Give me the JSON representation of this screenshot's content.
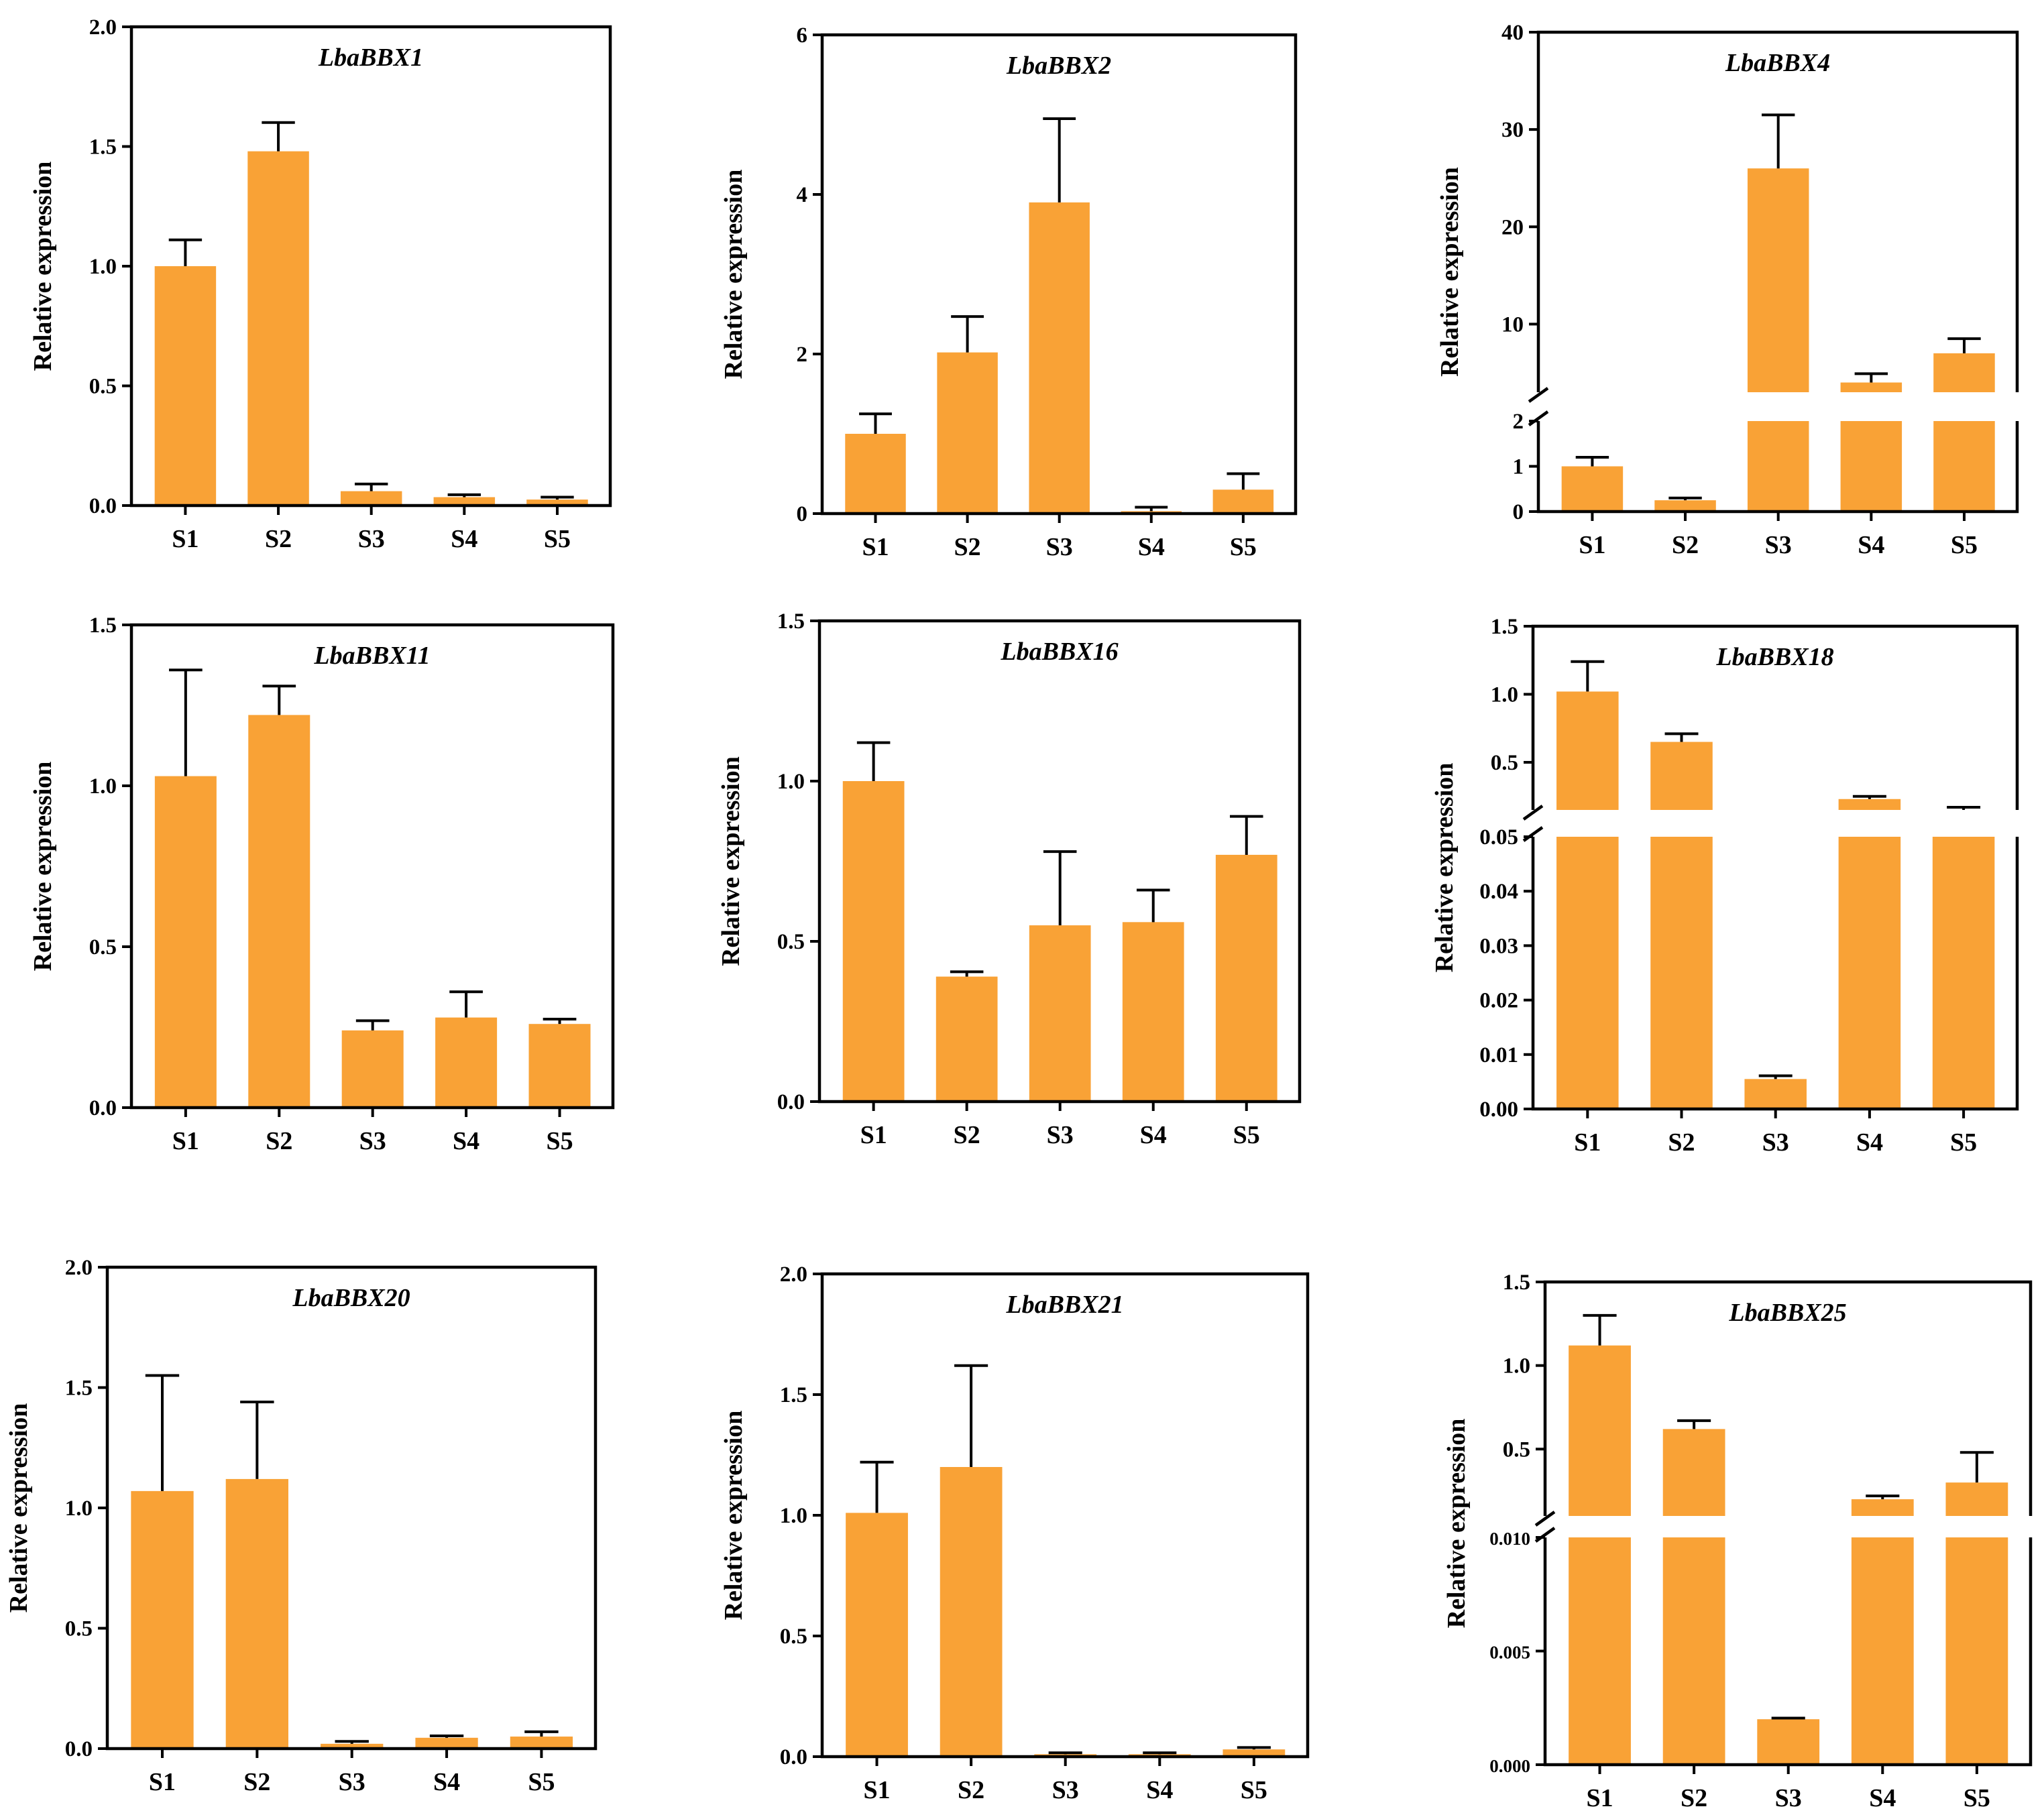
{
  "colors": {
    "bar": "#F9A236",
    "axis": "#000000"
  },
  "chart_data": [
    {
      "type": "bar",
      "title": "LbaBBX1",
      "ylabel": "Relative expression",
      "categories": [
        "S1",
        "S2",
        "S3",
        "S4",
        "S5"
      ],
      "values": [
        1.0,
        1.48,
        0.06,
        0.035,
        0.025
      ],
      "errors": [
        0.11,
        0.12,
        0.03,
        0.01,
        0.01
      ],
      "ylim": [
        0,
        2.0
      ],
      "yticks": [
        0,
        0.5,
        1.0,
        1.5,
        2.0
      ],
      "ytick_labels": [
        "0.0",
        "0.5",
        "1.0",
        "1.5",
        "2.0"
      ]
    },
    {
      "type": "bar",
      "title": "LbaBBX2",
      "ylabel": "Relative expression",
      "categories": [
        "S1",
        "S2",
        "S3",
        "S4",
        "S5"
      ],
      "values": [
        1.0,
        2.02,
        3.9,
        0.03,
        0.3
      ],
      "errors": [
        0.25,
        0.45,
        1.05,
        0.05,
        0.2
      ],
      "ylim": [
        0,
        6
      ],
      "yticks": [
        0,
        2,
        4,
        6
      ],
      "ytick_labels": [
        "0",
        "2",
        "4",
        "6"
      ]
    },
    {
      "type": "bar",
      "title": "LbaBBX4",
      "ylabel": "Relative expression",
      "categories": [
        "S1",
        "S2",
        "S3",
        "S4",
        "S5"
      ],
      "values": [
        1.0,
        0.25,
        26,
        4,
        7
      ],
      "errors": [
        0.2,
        0.05,
        5.5,
        0.9,
        1.5
      ],
      "axis_break": {
        "lower": [
          0,
          2
        ],
        "upper": [
          3,
          40
        ]
      },
      "yticks_lower": [
        0,
        1,
        2
      ],
      "ytick_labels_lower": [
        "0",
        "1",
        "2"
      ],
      "yticks_upper": [
        10,
        20,
        30,
        40
      ],
      "ytick_labels_upper": [
        "10",
        "20",
        "30",
        "40"
      ]
    },
    {
      "type": "bar",
      "title": "LbaBBX11",
      "ylabel": "Relative expression",
      "categories": [
        "S1",
        "S2",
        "S3",
        "S4",
        "S5"
      ],
      "values": [
        1.03,
        1.22,
        0.24,
        0.28,
        0.26
      ],
      "errors": [
        0.33,
        0.09,
        0.03,
        0.08,
        0.015
      ],
      "ylim": [
        0,
        1.5
      ],
      "yticks": [
        0,
        0.5,
        1.0,
        1.5
      ],
      "ytick_labels": [
        "0.0",
        "0.5",
        "1.0",
        "1.5"
      ]
    },
    {
      "type": "bar",
      "title": "LbaBBX16",
      "ylabel": "Relative expression",
      "categories": [
        "S1",
        "S2",
        "S3",
        "S4",
        "S5"
      ],
      "values": [
        1.0,
        0.39,
        0.55,
        0.56,
        0.77
      ],
      "errors": [
        0.12,
        0.015,
        0.23,
        0.1,
        0.12
      ],
      "ylim": [
        0,
        1.5
      ],
      "yticks": [
        0,
        0.5,
        1.0,
        1.5
      ],
      "ytick_labels": [
        "0.0",
        "0.5",
        "1.0",
        "1.5"
      ]
    },
    {
      "type": "bar",
      "title": "LbaBBX18",
      "ylabel": "Relative expression",
      "categories": [
        "S1",
        "S2",
        "S3",
        "S4",
        "S5"
      ],
      "values": [
        1.02,
        0.65,
        0.0055,
        0.23,
        0.15
      ],
      "errors": [
        0.22,
        0.06,
        0.0006,
        0.02,
        0.02
      ],
      "axis_break": {
        "lower": [
          0,
          0.05
        ],
        "upper": [
          0.15,
          1.5
        ]
      },
      "yticks_lower": [
        0,
        0.01,
        0.02,
        0.03,
        0.04,
        0.05
      ],
      "ytick_labels_lower": [
        "0.00",
        "0.01",
        "0.02",
        "0.03",
        "0.04",
        "0.05"
      ],
      "yticks_upper": [
        0.5,
        1.0,
        1.5
      ],
      "ytick_labels_upper": [
        "0.5",
        "1.0",
        "1.5"
      ]
    },
    {
      "type": "bar",
      "title": "LbaBBX20",
      "ylabel": "Relative expression",
      "categories": [
        "S1",
        "S2",
        "S3",
        "S4",
        "S5"
      ],
      "values": [
        1.07,
        1.12,
        0.02,
        0.045,
        0.05
      ],
      "errors": [
        0.48,
        0.32,
        0.01,
        0.008,
        0.02
      ],
      "ylim": [
        0,
        2.0
      ],
      "yticks": [
        0,
        0.5,
        1.0,
        1.5,
        2.0
      ],
      "ytick_labels": [
        "0.0",
        "0.5",
        "1.0",
        "1.5",
        "2.0"
      ]
    },
    {
      "type": "bar",
      "title": "LbaBBX21",
      "ylabel": "Relative expression",
      "categories": [
        "S1",
        "S2",
        "S3",
        "S4",
        "S5"
      ],
      "values": [
        1.01,
        1.2,
        0.01,
        0.01,
        0.03
      ],
      "errors": [
        0.21,
        0.42,
        0.006,
        0.006,
        0.008
      ],
      "ylim": [
        0,
        2.0
      ],
      "yticks": [
        0,
        0.5,
        1.0,
        1.5,
        2.0
      ],
      "ytick_labels": [
        "0.0",
        "0.5",
        "1.0",
        "1.5",
        "2.0"
      ]
    },
    {
      "type": "bar",
      "title": "LbaBBX25",
      "ylabel": "Relative expression",
      "categories": [
        "S1",
        "S2",
        "S3",
        "S4",
        "S5"
      ],
      "values": [
        1.12,
        0.62,
        0.002,
        0.2,
        0.3
      ],
      "errors": [
        0.18,
        0.05,
        5e-05,
        0.02,
        0.18
      ],
      "axis_break": {
        "lower": [
          0,
          0.01
        ],
        "upper": [
          0.1,
          1.5
        ]
      },
      "yticks_lower": [
        0,
        0.005,
        0.01
      ],
      "ytick_labels_lower": [
        "0.000",
        "0.005",
        "0.010"
      ],
      "yticks_upper": [
        0.5,
        1.0,
        1.5
      ],
      "ytick_labels_upper": [
        "0.5",
        "1.0",
        "1.5"
      ]
    }
  ]
}
